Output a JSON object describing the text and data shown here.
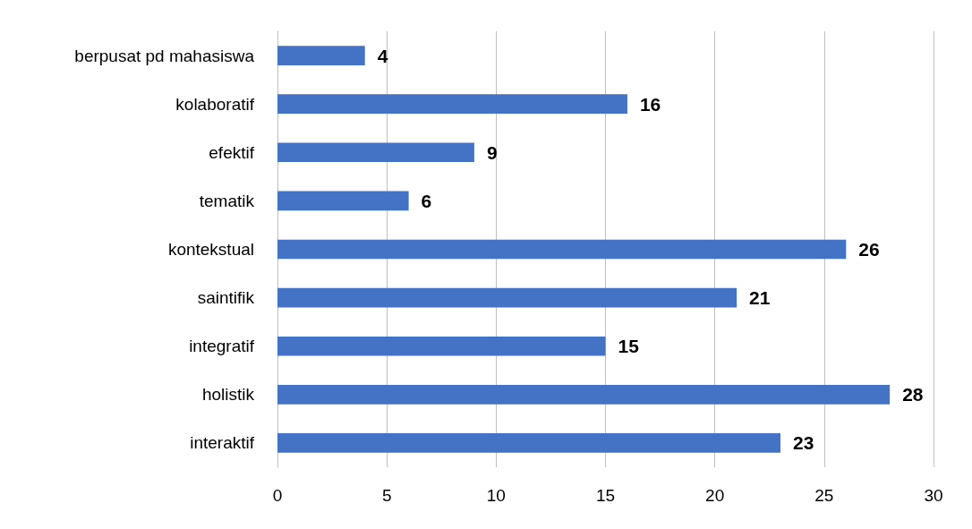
{
  "chart_data": {
    "type": "bar",
    "orientation": "horizontal",
    "categories": [
      "berpusat pd mahasiswa",
      "kolaboratif",
      "efektif",
      "tematik",
      "kontekstual",
      "saintifik",
      "integratif",
      "holistik",
      "interaktif"
    ],
    "values": [
      4,
      16,
      9,
      6,
      26,
      21,
      15,
      28,
      23
    ],
    "color": "#4472c4",
    "xlim": [
      0,
      30
    ],
    "xticks": [
      0,
      5,
      10,
      15,
      20,
      25,
      30
    ],
    "grid": "x",
    "data_labels": true
  }
}
